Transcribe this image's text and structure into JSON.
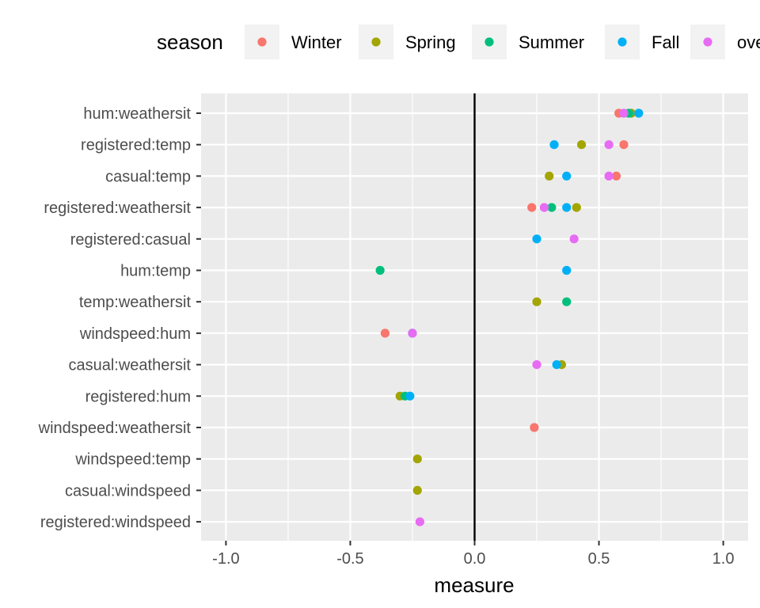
{
  "chart_data": {
    "type": "scatter",
    "title": "",
    "xlabel": "measure",
    "ylabel": "",
    "xlim": [
      -1.1,
      1.1
    ],
    "x_ticks": [
      -1.0,
      -0.5,
      0.0,
      0.5,
      1.0
    ],
    "x_tick_labels": [
      "-1.0",
      "-0.5",
      "0.0",
      "0.5",
      "1.0"
    ],
    "reference_line_x": 0,
    "grid": true,
    "legend": {
      "title": "season",
      "position": "top"
    },
    "categories": [
      "hum:weathersit",
      "registered:temp",
      "casual:temp",
      "registered:weathersit",
      "registered:casual",
      "hum:temp",
      "temp:weathersit",
      "windspeed:hum",
      "casual:weathersit",
      "registered:hum",
      "windspeed:weathersit",
      "windspeed:temp",
      "casual:windspeed",
      "registered:windspeed"
    ],
    "series": [
      {
        "name": "Winter",
        "color": "#F8766D",
        "values": [
          0.58,
          0.6,
          0.57,
          0.23,
          null,
          null,
          null,
          -0.36,
          null,
          null,
          0.24,
          null,
          null,
          null
        ]
      },
      {
        "name": "Spring",
        "color": "#A3A500",
        "values": [
          0.63,
          0.43,
          0.3,
          0.41,
          null,
          null,
          0.25,
          null,
          0.35,
          -0.3,
          null,
          -0.23,
          -0.23,
          null
        ]
      },
      {
        "name": "Summer",
        "color": "#00BF7D",
        "values": [
          0.62,
          null,
          null,
          0.31,
          null,
          -0.38,
          0.37,
          null,
          null,
          -0.28,
          null,
          null,
          null,
          null
        ]
      },
      {
        "name": "Fall",
        "color": "#00B0F6",
        "values": [
          0.66,
          0.32,
          0.37,
          0.37,
          0.25,
          0.37,
          null,
          -0.25,
          0.33,
          -0.26,
          null,
          null,
          null,
          null
        ]
      },
      {
        "name": "overall",
        "color": "#E76BF3",
        "values": [
          0.6,
          0.54,
          0.54,
          0.28,
          0.4,
          null,
          null,
          -0.25,
          0.25,
          null,
          null,
          null,
          null,
          -0.22
        ]
      }
    ]
  }
}
